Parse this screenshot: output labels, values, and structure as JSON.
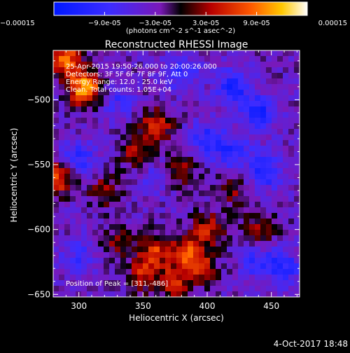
{
  "chart_data": {
    "type": "heatmap",
    "title": "Reconstructed RHESSI Image",
    "xlabel": "Heliocentric X (arcsec)",
    "ylabel": "Heliocentric Y (arcsec)",
    "xlim": [
      280,
      472
    ],
    "ylim": [
      -652,
      -462
    ],
    "xticks": [
      300,
      350,
      400,
      450
    ],
    "yticks": [
      -500,
      -550,
      -600,
      -650
    ],
    "colorbar": {
      "min": -0.00015,
      "max": 0.00015,
      "tick_labels": [
        "-0.00015",
        "-9.0e-05",
        "-3.0e-05",
        "3.0e-05",
        "9.0e-05",
        "0.00015"
      ],
      "units_label": "(photons cm^-2 s^-1 asec^-2)"
    },
    "annotations": [
      "25-Apr-2015 19:50:26.000 to 20:00:26.000",
      "Detectors: 3F 5F 6F 7F 8F 9F, Att 0",
      "Energy Range: 12.0 - 25.0 keV",
      "Clean. Total counts: 1.05E+04"
    ],
    "peak_label": "Position of Peak = [311,-486]",
    "peak": [
      311,
      -486
    ],
    "hotspots": [
      {
        "x": 305,
        "y": -492,
        "value": 0.00015
      },
      {
        "x": 290,
        "y": -470,
        "value": 0.00012
      },
      {
        "x": 283,
        "y": -560,
        "value": 0.00011
      },
      {
        "x": 360,
        "y": -520,
        "value": 9e-05
      },
      {
        "x": 345,
        "y": -540,
        "value": 7e-05
      },
      {
        "x": 380,
        "y": -555,
        "value": 6e-05
      },
      {
        "x": 320,
        "y": -570,
        "value": 6e-05
      },
      {
        "x": 360,
        "y": -615,
        "value": 9e-05
      },
      {
        "x": 385,
        "y": -618,
        "value": 9e-05
      },
      {
        "x": 400,
        "y": -600,
        "value": 8e-05
      },
      {
        "x": 350,
        "y": -635,
        "value": 8e-05
      },
      {
        "x": 375,
        "y": -640,
        "value": 8e-05
      },
      {
        "x": 395,
        "y": -630,
        "value": 7e-05
      },
      {
        "x": 440,
        "y": -600,
        "value": 6e-05
      },
      {
        "x": 420,
        "y": -570,
        "value": 5e-05
      },
      {
        "x": 330,
        "y": -610,
        "value": 5e-05
      }
    ],
    "coldspots": [
      {
        "x": 420,
        "y": -490,
        "value": -9e-05
      },
      {
        "x": 440,
        "y": -510,
        "value": -9e-05
      },
      {
        "x": 400,
        "y": -530,
        "value": -7e-05
      },
      {
        "x": 445,
        "y": -555,
        "value": -8e-05
      },
      {
        "x": 380,
        "y": -480,
        "value": -6e-05
      },
      {
        "x": 300,
        "y": -545,
        "value": -7e-05
      },
      {
        "x": 330,
        "y": -500,
        "value": -5e-05
      },
      {
        "x": 460,
        "y": -630,
        "value": -7e-05
      },
      {
        "x": 440,
        "y": -625,
        "value": -6e-05
      },
      {
        "x": 300,
        "y": -620,
        "value": -5e-05
      },
      {
        "x": 420,
        "y": -540,
        "value": -7e-05
      },
      {
        "x": 360,
        "y": -560,
        "value": -4e-05
      }
    ],
    "grid": false
  },
  "footer": {
    "timestamp": "4-Oct-2017 18:48"
  }
}
